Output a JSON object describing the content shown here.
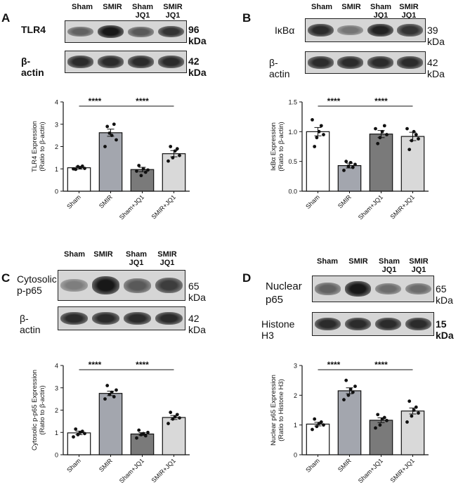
{
  "panels": [
    {
      "label": "A",
      "lanes": [
        "Sham",
        "SMIR",
        "Sham\nJQ1",
        "SMIR\nJQ1"
      ],
      "blots": [
        {
          "label": "TLR4",
          "kda": "96 kDa",
          "bands": [
            0.55,
            0.95,
            0.6,
            0.8
          ]
        },
        {
          "label": "β-actin",
          "kda": "42 kDa",
          "bands": [
            0.85,
            0.85,
            0.85,
            0.85
          ]
        }
      ],
      "chart_data": {
        "type": "bar",
        "categories": [
          "Sham",
          "SMIR",
          "Sham+JQ1",
          "SMIR+JQ1"
        ],
        "values": [
          1.05,
          2.62,
          0.97,
          1.68
        ],
        "errors": [
          0.06,
          0.16,
          0.1,
          0.14
        ],
        "points": [
          [
            1.0,
            0.98,
            1.1,
            1.05,
            1.12,
            1.02
          ],
          [
            2.0,
            2.9,
            2.6,
            2.5,
            3.0,
            2.3
          ],
          [
            0.9,
            1.15,
            0.7,
            1.0,
            0.85,
            0.95
          ],
          [
            1.35,
            2.0,
            1.5,
            1.8,
            1.9,
            1.6
          ]
        ],
        "bar_colors": [
          "#ffffff",
          "#a3a6ae",
          "#7a7a7a",
          "#d9d9d9"
        ],
        "ylabel": "TLR4 Expression\n(Ratio to β-actin)",
        "ylim": [
          0,
          4
        ],
        "yticks": [
          "0",
          "1",
          "2",
          "3",
          "4"
        ],
        "significance": [
          {
            "from": 0,
            "to": 1,
            "label": "****"
          },
          {
            "from": 1,
            "to": 3,
            "label": "****"
          }
        ]
      }
    },
    {
      "label": "B",
      "lanes": [
        "Sham",
        "SMIR",
        "Sham\nJQ1",
        "SMIR\nJQ1"
      ],
      "blots": [
        {
          "label": "IκBα",
          "kda": "39 kDa",
          "bands": [
            0.85,
            0.45,
            0.9,
            0.8
          ]
        },
        {
          "label": "β-actin",
          "kda": "42 kDa",
          "bands": [
            0.85,
            0.85,
            0.85,
            0.85
          ]
        }
      ],
      "chart_data": {
        "type": "bar",
        "categories": [
          "Sham",
          "SMIR",
          "Sham+JQ1",
          "SMIR+JQ1"
        ],
        "values": [
          1.0,
          0.43,
          0.96,
          0.92
        ],
        "errors": [
          0.07,
          0.04,
          0.06,
          0.07
        ],
        "points": [
          [
            1.2,
            0.75,
            0.9,
            1.0,
            1.1,
            0.95
          ],
          [
            0.35,
            0.5,
            0.42,
            0.48,
            0.4,
            0.45
          ],
          [
            1.05,
            0.8,
            0.9,
            1.0,
            1.1,
            0.95
          ],
          [
            1.05,
            0.7,
            0.85,
            1.0,
            0.95,
            0.88
          ]
        ],
        "bar_colors": [
          "#ffffff",
          "#a3a6ae",
          "#7a7a7a",
          "#d9d9d9"
        ],
        "ylabel": "IκBα Expression\n(Ratio to β-actin)",
        "ylim": [
          0,
          1.5
        ],
        "yticks": [
          "0.0",
          "0.5",
          "1.0",
          "1.5"
        ],
        "significance": [
          {
            "from": 0,
            "to": 1,
            "label": "****"
          },
          {
            "from": 1,
            "to": 3,
            "label": "****"
          }
        ]
      }
    },
    {
      "label": "C",
      "lanes": [
        "Sham",
        "SMIR",
        "Sham\nJQ1",
        "SMIR\nJQ1"
      ],
      "blots": [
        {
          "label": "Cytosolic\np-p65",
          "kda": "65 kDa",
          "bands": [
            0.4,
            0.95,
            0.6,
            0.75
          ]
        },
        {
          "label": "β-actin",
          "kda": "42 kDa",
          "bands": [
            0.85,
            0.85,
            0.85,
            0.85
          ]
        }
      ],
      "chart_data": {
        "type": "bar",
        "categories": [
          "Sham",
          "SMIR",
          "Sham+JQ1",
          "SMIR+JQ1"
        ],
        "values": [
          0.98,
          2.75,
          0.93,
          1.67
        ],
        "errors": [
          0.08,
          0.1,
          0.06,
          0.09
        ],
        "points": [
          [
            0.8,
            1.15,
            0.9,
            1.0,
            1.05,
            0.95
          ],
          [
            2.5,
            3.1,
            2.7,
            2.8,
            2.6,
            2.9
          ],
          [
            0.75,
            1.1,
            0.9,
            0.95,
            0.85,
            1.0
          ],
          [
            1.4,
            1.9,
            1.6,
            1.7,
            1.8,
            1.65
          ]
        ],
        "bar_colors": [
          "#ffffff",
          "#a3a6ae",
          "#7a7a7a",
          "#d9d9d9"
        ],
        "ylabel": "Cytosolic p-p65 Expression\n(Ratio to β-actin)",
        "ylim": [
          0,
          4
        ],
        "yticks": [
          "0",
          "1",
          "2",
          "3",
          "4"
        ],
        "significance": [
          {
            "from": 0,
            "to": 1,
            "label": "****"
          },
          {
            "from": 1,
            "to": 3,
            "label": "****"
          }
        ]
      }
    },
    {
      "label": "D",
      "lanes": [
        "Sham",
        "SMIR",
        "Sham\nJQ1",
        "SMIR\nJQ1"
      ],
      "blots": [
        {
          "label": "Nuclear\np65",
          "kda": "65 kDa",
          "bands": [
            0.55,
            0.95,
            0.5,
            0.5
          ]
        },
        {
          "label": "Histone H3",
          "kda": "15 kDa",
          "bands": [
            0.85,
            0.85,
            0.85,
            0.85
          ]
        }
      ],
      "chart_data": {
        "type": "bar",
        "categories": [
          "Sham",
          "SMIR",
          "Sham+JQ1",
          "SMIR+JQ1"
        ],
        "values": [
          1.03,
          2.15,
          1.16,
          1.47
        ],
        "errors": [
          0.06,
          0.1,
          0.08,
          0.1
        ],
        "points": [
          [
            0.85,
            1.2,
            0.95,
            1.05,
            1.1,
            1.0
          ],
          [
            1.85,
            2.5,
            2.0,
            2.2,
            2.1,
            2.3
          ],
          [
            0.9,
            1.35,
            1.0,
            1.2,
            1.25,
            1.15
          ],
          [
            1.1,
            1.8,
            1.3,
            1.5,
            1.6,
            1.4
          ]
        ],
        "bar_colors": [
          "#ffffff",
          "#a3a6ae",
          "#7a7a7a",
          "#d9d9d9"
        ],
        "ylabel": "Nuclear p65 Expression\n(Ratio to Histone H3)",
        "ylim": [
          0,
          3
        ],
        "yticks": [
          "0",
          "1",
          "2",
          "3"
        ],
        "significance": [
          {
            "from": 0,
            "to": 1,
            "label": "****"
          },
          {
            "from": 1,
            "to": 3,
            "label": "****"
          }
        ]
      }
    }
  ]
}
